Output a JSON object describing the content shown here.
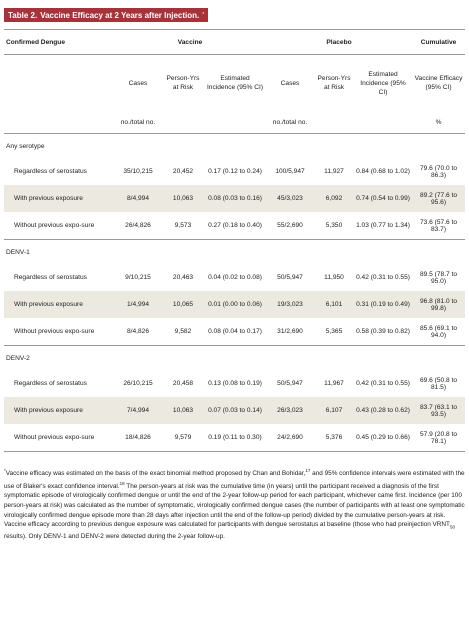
{
  "title": {
    "label": "Table 2.",
    "text": "Vaccine Efficacy at 2 Years after Injection.",
    "marker": "*"
  },
  "table": {
    "group_headers": [
      "Confirmed Dengue",
      "Vaccine",
      "Placebo",
      "Cumulative"
    ],
    "column_headers": [
      "Cases",
      "Person-Yrs at Risk",
      "Estimated Incidence (95% CI)",
      "Cases",
      "Person-Yrs at Risk",
      "Estimated Incidence (95% CI)",
      "Vaccine Efficacy (95% CI)"
    ],
    "units": [
      "no./total no.",
      "no./total no.",
      "%"
    ],
    "sections": [
      {
        "name": "Any serotype",
        "rows": [
          {
            "label": "Regardless of serostatus",
            "cells": [
              "35/10,215",
              "20,452",
              "0.17 (0.12 to 0.24)",
              "100/5,947",
              "11,927",
              "0.84 (0.68 to 1.02)",
              "79.6 (70.0 to 86.3)"
            ]
          },
          {
            "label": "With previous exposure",
            "cells": [
              "8/4,994",
              "10,063",
              "0.08 (0.03 to 0.16)",
              "45/3,023",
              "6,092",
              "0.74 (0.54 to 0.99)",
              "89.2 (77.6 to 95.6)"
            ]
          },
          {
            "label": "Without previous expo-sure",
            "cells": [
              "26/4,826",
              "9,573",
              "0.27 (0.18 to 0.40)",
              "55/2,690",
              "5,350",
              "1.03 (0.77 to 1.34)",
              "73.6 (57.6 to 83.7)"
            ]
          }
        ]
      },
      {
        "name": "DENV-1",
        "rows": [
          {
            "label": "Regardless of serostatus",
            "cells": [
              "9/10,215",
              "20,463",
              "0.04 (0.02 to 0.08)",
              "50/5,947",
              "11,950",
              "0.42 (0.31 to 0.55)",
              "89.5 (78.7 to 95.0)"
            ]
          },
          {
            "label": "With previous exposure",
            "cells": [
              "1/4,994",
              "10,065",
              "0.01 (0.00 to 0.06)",
              "19/3,023",
              "6,101",
              "0.31 (0.19 to 0.49)",
              "96.8 (81.0 to 99.8)"
            ]
          },
          {
            "label": "Without previous expo-sure",
            "cells": [
              "8/4,826",
              "9,582",
              "0.08 (0.04 to 0.17)",
              "31/2,690",
              "5,365",
              "0.58 (0.39 to 0.82)",
              "85.6 (69.1 to 94.0)"
            ]
          }
        ]
      },
      {
        "name": "DENV-2",
        "rows": [
          {
            "label": "Regardless of serostatus",
            "cells": [
              "26/10,215",
              "20,458",
              "0.13 (0.08 to 0.19)",
              "50/5,947",
              "11,967",
              "0.42 (0.31 to 0.55)",
              "69.6 (50.8 to 81.5)"
            ]
          },
          {
            "label": "With previous exposure",
            "cells": [
              "7/4,994",
              "10,063",
              "0.07 (0.03 to 0.14)",
              "26/3,023",
              "6,107",
              "0.43 (0.28 to 0.62)",
              "83.7 (63.1 to 93.5)"
            ]
          },
          {
            "label": "Without previous expo-sure",
            "cells": [
              "18/4,826",
              "9,579",
              "0.19 (0.11 to 0.30)",
              "24/2,690",
              "5,376",
              "0.45 (0.29 to 0.66)",
              "57.9 (20.8 to 78.1)"
            ]
          }
        ]
      }
    ]
  },
  "footnote": {
    "marker": "*",
    "parts": [
      "Vaccine efficacy was estimated on the basis of the exact binomial method proposed by Chan and Bohidar,",
      "17",
      " and 95% confidence intervals were estimated with the use of Blaker's exact confidence interval.",
      "18",
      " The person-years at risk was the cumulative time (in years) until the participant received a diagnosis of the first symptomatic episode of virologically confirmed dengue or until the end of the 2-year follow-up period for each participant, whichever came first. Incidence (per 100 person-years at risk) was calculated as the number of symptomatic, virologically confirmed dengue cases (the number of participants with at least one symptomatic virologically confirmed dengue episode more than 28 days after injection until the end of the follow-up period) divided by the cumulative person-years at risk. Vaccine efficacy according to previous dengue exposure was calculated for participants with dengue serostatus at baseline (those who had preinjection VRNT",
      "50",
      " results). Only DENV-1 and DENV-2 were detected during the 2-year follow-up."
    ]
  }
}
